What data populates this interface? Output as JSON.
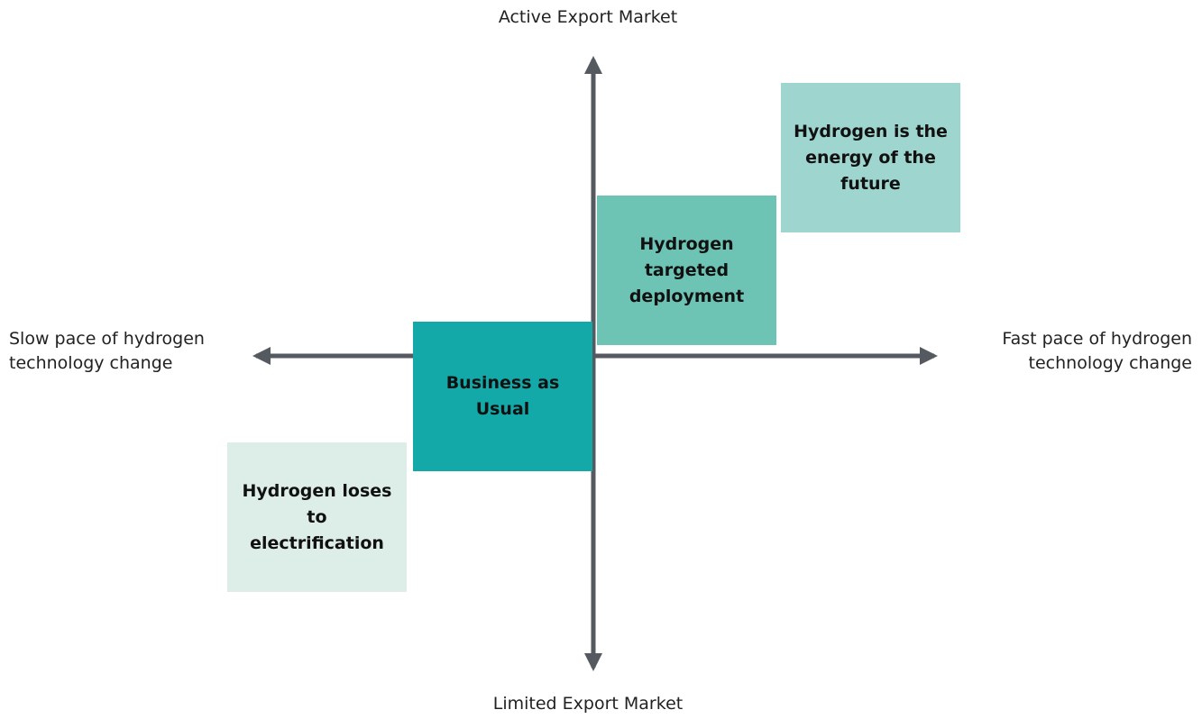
{
  "axes": {
    "top": "Active Export Market",
    "bottom": "Limited Export Market",
    "left": [
      "Slow pace of hydrogen",
      "technology change"
    ],
    "right": [
      "Fast pace of hydrogen",
      "technology change"
    ]
  },
  "scenarios": [
    {
      "lines": [
        "Hydrogen is the",
        "energy of the",
        "future"
      ],
      "color": "#9fd5cf"
    },
    {
      "lines": [
        "Hydrogen",
        "targeted",
        "deployment"
      ],
      "color": "#6dc4b4"
    },
    {
      "lines": [
        "Business as",
        "Usual"
      ],
      "color": "#14a9a9"
    },
    {
      "lines": [
        "Hydrogen loses",
        "to",
        "electrification"
      ],
      "color": "#ddeee9"
    }
  ]
}
